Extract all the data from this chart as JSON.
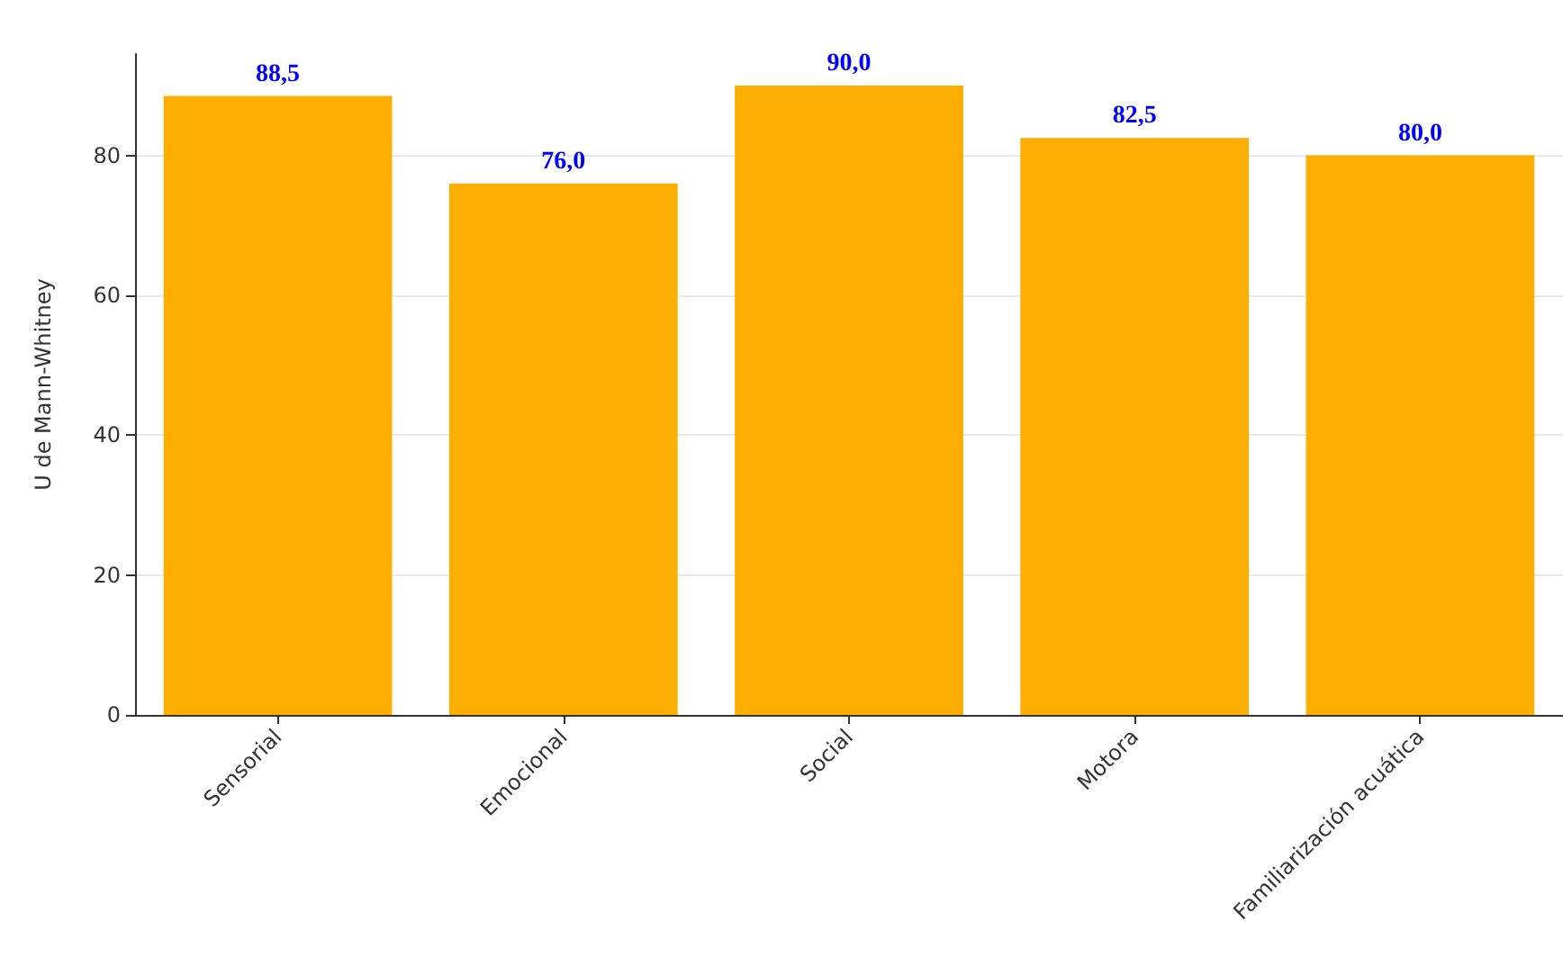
{
  "chart_data": {
    "type": "bar",
    "ylabel": "U de Mann-Whitney",
    "categories": [
      "Sensorial",
      "Emocional",
      "Social",
      "Motora",
      "Familiarización acuática"
    ],
    "values": [
      88.5,
      76.0,
      90.0,
      82.5,
      80.0
    ],
    "color": "#fcae02",
    "value_labels": [
      "88,5",
      "76,0",
      "90,0",
      "82,5",
      "80,0"
    ],
    "ylim": [
      0,
      94.5
    ],
    "yticks": [
      0,
      20,
      40,
      60,
      80
    ],
    "grid": "y"
  }
}
